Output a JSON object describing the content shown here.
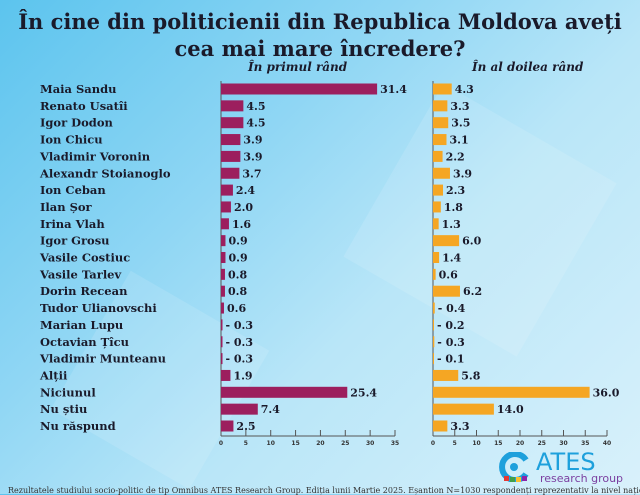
{
  "chart_data": [
    {
      "type": "bar",
      "orientation": "horizontal",
      "title": "În cine din politicienii din Republica Moldova aveți cea mai mare încredere?",
      "subtitle": "În primul rând",
      "categories": [
        "Maia Sandu",
        "Renato Usatîi",
        "Igor Dodon",
        "Ion Chicu",
        "Vladimir Voronin",
        "Alexandr Stoianoglo",
        "Ion Ceban",
        "Ilan Șor",
        "Irina Vlah",
        "Igor Grosu",
        "Vasile Costiuc",
        "Vasile Tarlev",
        "Dorin Recean",
        "Tudor Ulianovschi",
        "Marian Lupu",
        "Octavian Țîcu",
        "Vladimir Munteanu",
        "Alții",
        "Niciunul",
        "Nu știu",
        "Nu răspund"
      ],
      "values": [
        31.4,
        4.5,
        4.5,
        3.9,
        3.9,
        3.7,
        2.4,
        2.0,
        1.6,
        0.9,
        0.9,
        0.8,
        0.8,
        0.6,
        0.3,
        0.3,
        0.3,
        1.9,
        25.4,
        7.4,
        2.5
      ],
      "xlim": [
        0,
        35
      ],
      "ticks": [
        0,
        5,
        10,
        15,
        20,
        25,
        30,
        35
      ],
      "color": "#9c1f5e"
    },
    {
      "type": "bar",
      "orientation": "horizontal",
      "subtitle": "În al doilea rând",
      "categories": [
        "Maia Sandu",
        "Renato Usatîi",
        "Igor Dodon",
        "Ion Chicu",
        "Vladimir Voronin",
        "Alexandr Stoianoglo",
        "Ion Ceban",
        "Ilan Șor",
        "Irina Vlah",
        "Igor Grosu",
        "Vasile Costiuc",
        "Vasile Tarlev",
        "Dorin Recean",
        "Tudor Ulianovschi",
        "Marian Lupu",
        "Octavian Țîcu",
        "Vladimir Munteanu",
        "Alții",
        "Niciunul",
        "Nu știu",
        "Nu răspund"
      ],
      "values": [
        4.3,
        3.3,
        3.5,
        3.1,
        2.2,
        3.9,
        2.3,
        1.8,
        1.3,
        6.0,
        1.4,
        0.6,
        6.2,
        0.4,
        0.2,
        0.3,
        0.1,
        5.8,
        36.0,
        14.0,
        3.3
      ],
      "xlim": [
        0,
        40
      ],
      "ticks": [
        0,
        5,
        10,
        15,
        20,
        25,
        30,
        35,
        40
      ],
      "color": "#f5a623"
    }
  ],
  "logo": {
    "name": "ATES",
    "tagline": "research group"
  },
  "footer": "Rezultatele studiului socio-politic de tip Omnibus ATES Research Group. Ediția lunii Martie 2025. Eșantion N=1030 respondenți reprezentativ la nivel național"
}
